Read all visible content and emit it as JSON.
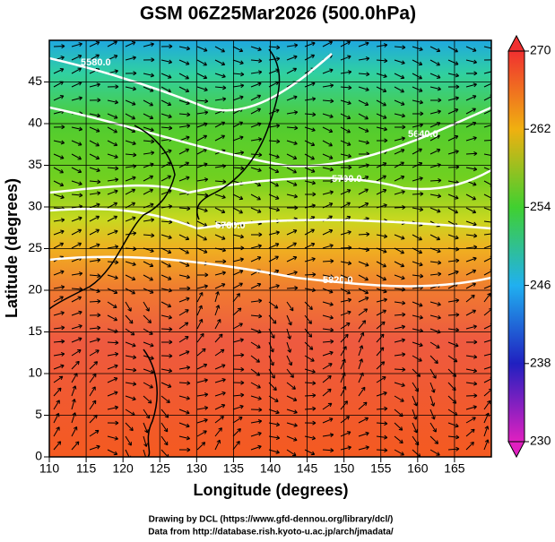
{
  "title": "GSM 06Z25Mar2026 (500.0hPa)",
  "x_axis": {
    "label": "Longitude (degrees)",
    "lim": [
      110,
      170
    ],
    "ticks": [
      110,
      115,
      120,
      125,
      130,
      135,
      140,
      145,
      150,
      155,
      160,
      165
    ]
  },
  "y_axis": {
    "label": "Latitude  (degrees)",
    "lim": [
      0,
      50
    ],
    "ticks": [
      0,
      5,
      10,
      15,
      20,
      25,
      30,
      35,
      40,
      45
    ]
  },
  "colorbar": {
    "lim": [
      230,
      270
    ],
    "ticks": [
      230,
      238,
      246,
      254,
      262,
      270
    ]
  },
  "contour_labels": [
    "5580.0",
    "5640.0",
    "5700.0",
    "5760.0",
    "5820.0"
  ],
  "credits": [
    "Drawing by DCL (https://www.gfd-dennou.org/library/dcl/)",
    "Data from http://database.rish.kyoto-u.ac.jp/arch/jmadata/"
  ]
}
